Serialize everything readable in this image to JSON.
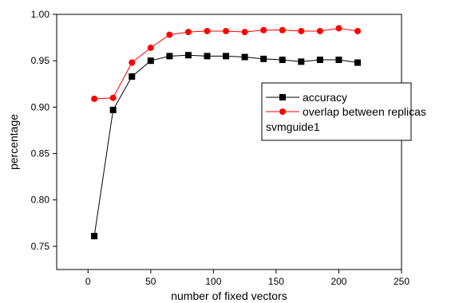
{
  "chart_data": {
    "type": "line",
    "xlabel": "number of fixed vectors",
    "ylabel": "percentage",
    "xlim": [
      -25,
      250
    ],
    "ylim": [
      0.725,
      1.0
    ],
    "xticks": [
      0,
      50,
      100,
      150,
      200,
      250
    ],
    "yticks": [
      0.75,
      0.8,
      0.85,
      0.9,
      0.95,
      1.0
    ],
    "xtick_labels": [
      "0",
      "50",
      "100",
      "150",
      "200",
      "250"
    ],
    "ytick_labels": [
      "0.75",
      "0.80",
      "0.85",
      "0.90",
      "0.95",
      "1.00"
    ],
    "grid": false,
    "legend_position": "right",
    "legend_note": "svmguide1",
    "x": [
      5,
      20,
      35,
      50,
      65,
      80,
      95,
      110,
      125,
      140,
      155,
      170,
      185,
      200,
      215
    ],
    "series": [
      {
        "name": "accuracy",
        "color": "#000000",
        "marker": "square",
        "values": [
          0.761,
          0.897,
          0.933,
          0.95,
          0.955,
          0.956,
          0.955,
          0.955,
          0.954,
          0.952,
          0.951,
          0.949,
          0.951,
          0.951,
          0.948
        ]
      },
      {
        "name": "overlap between replicas",
        "color": "#ff0000",
        "marker": "circle",
        "values": [
          0.909,
          0.91,
          0.948,
          0.964,
          0.978,
          0.981,
          0.982,
          0.982,
          0.981,
          0.983,
          0.983,
          0.982,
          0.982,
          0.985,
          0.982
        ]
      }
    ]
  }
}
